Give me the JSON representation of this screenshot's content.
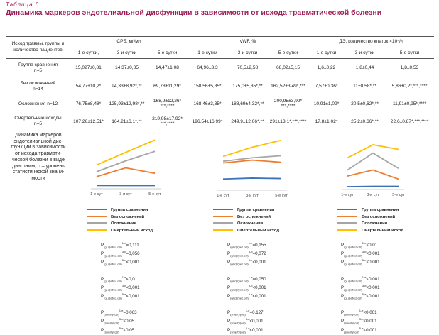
{
  "caption": "Таблица 6",
  "title": "Динамика маркеров эндотелиальной дисфункции в зависимости от исхода травматической болезни",
  "table": {
    "first_header": [
      "Исход травмы, группы и",
      "количество пациентов"
    ],
    "groups": [
      "СРБ, мг/мл",
      "vWF, %",
      "ДЭ, количество клеток ×10⁴/л"
    ],
    "days": [
      "1-е сутки,",
      "3-и сутки",
      "5-е сутки",
      "1-е сутки",
      "3-и сутки",
      "5-е сутки",
      "1-е сутки",
      "3-и сутки",
      "5-е сутки"
    ],
    "rows": [
      {
        "label": [
          "Группа сравнения",
          "n=5"
        ],
        "cells": [
          "15,027±0,81",
          "14,37±0,85",
          "14,47±1,08",
          "64,96±3,3",
          "70,5±2,58",
          "68,02±5,15",
          "1,6±0,22",
          "1,8±0,44",
          "1,8±0,53"
        ]
      },
      {
        "label": [
          "Без осложнений",
          "n=14"
        ],
        "cells": [
          "54,77±10,2*",
          "94,33±8,92*,**",
          "69,78±11,29*",
          "158,56±5,85*",
          "175,0±5,85*,**",
          "162,52±3,49*,***",
          "7,57±0,36*",
          "11±0,58*,**",
          "5,86±0,2*,***,****"
        ]
      },
      {
        "label": [
          "Осложнения n=12",
          ""
        ],
        "cells": [
          "76,75±8,48*",
          "125,93±12,98*,**",
          "168,9±12,26*",
          "168,46±3,35*",
          "188,69±4,32*,**",
          "200,95±3,99*",
          "10,91±1,09*",
          "20,5±0,62*,**",
          "11,91±0,95*,****"
        ],
        "extra": [
          "",
          "",
          "***,****",
          "",
          "",
          "***,****",
          "",
          "",
          ""
        ]
      },
      {
        "label": [
          "Смертельные исходы",
          "n=5"
        ],
        "cells": [
          "107,26±12,51*",
          "164,21±6,1*,**",
          "219,98±17,92*",
          "196,54±16,99*",
          "249,9±12,06*,**",
          "291±13,1*,***,****",
          "17,8±1,02*",
          "25,2±0,66*,**",
          "22,6±0,87*,***,****"
        ],
        "extra": [
          "",
          "",
          "***,****",
          "",
          "",
          "",
          "",
          "",
          ""
        ]
      }
    ]
  },
  "side_text": [
    "Динамика маркеров",
    "эндотелиальной дис-",
    "функции в зависимости",
    "от исхода травмати-",
    "ческой болезни в виде",
    "диаграмм, p – уровень",
    "статистической значи-",
    "мости"
  ],
  "chart_data": [
    {
      "type": "line",
      "categories": [
        "1-е сут",
        "3-и сут",
        "5-е сут"
      ],
      "ylim": [
        0,
        240
      ],
      "series": [
        {
          "name": "Группа сравнения",
          "color": "#3b74b8",
          "values": [
            15.027,
            14.37,
            14.47
          ]
        },
        {
          "name": "Без осложнений",
          "color": "#ed7d31",
          "values": [
            54.77,
            94.33,
            69.78
          ]
        },
        {
          "name": "Осложнения",
          "color": "#a5a5a5",
          "values": [
            76.75,
            125.93,
            168.9
          ]
        },
        {
          "name": "Смертельный исход",
          "color": "#ffc000",
          "values": [
            107.26,
            164.21,
            219.98
          ]
        }
      ]
    },
    {
      "type": "line",
      "categories": [
        "1-е сут",
        "3-и сут",
        "5-е сут"
      ],
      "ylim": [
        0,
        310
      ],
      "series": [
        {
          "name": "Группа сравнения",
          "color": "#3b74b8",
          "values": [
            64.96,
            70.5,
            68.02
          ]
        },
        {
          "name": "Без осложнений",
          "color": "#ed7d31",
          "values": [
            158.56,
            175.0,
            162.52
          ]
        },
        {
          "name": "Осложнения",
          "color": "#a5a5a5",
          "values": [
            168.46,
            188.69,
            200.95
          ]
        },
        {
          "name": "Смертельный исход",
          "color": "#ffc000",
          "values": [
            196.54,
            249.9,
            291.0
          ]
        }
      ]
    },
    {
      "type": "line",
      "categories": [
        "1-е сут",
        "3-и сут",
        "5-е сут"
      ],
      "ylim": [
        0,
        30
      ],
      "series": [
        {
          "name": "Группа сравнения",
          "color": "#3b74b8",
          "values": [
            1.6,
            1.8,
            1.8
          ]
        },
        {
          "name": "Без осложнений",
          "color": "#ed7d31",
          "values": [
            7.57,
            11.0,
            5.86
          ]
        },
        {
          "name": "Осложнения",
          "color": "#a5a5a5",
          "values": [
            10.91,
            20.5,
            11.91
          ]
        },
        {
          "name": "Смертельный исход",
          "color": "#ffc000",
          "values": [
            17.8,
            25.2,
            22.6
          ]
        }
      ]
    }
  ],
  "pvalues": [
    [
      [
        [
          "(gr.c)/(bez.osl)",
          "1-е",
          "=0,111"
        ],
        [
          "(gr.c)/(bez.osl)",
          "3-и",
          "=0,056"
        ],
        [
          "(gr.c)/(bez.osl)",
          "5-е",
          "<0,001"
        ]
      ],
      [
        [
          "(gr.c)/(bez.osl)",
          "1-е",
          "<0,01"
        ],
        [
          "(gr.c)/(bez.osl)",
          "3-и",
          "<0,001"
        ],
        [
          "(gr.c)/(bez.osl)",
          "5-е",
          "<0,001"
        ]
      ],
      [
        [
          "(smert)/(osl)",
          "1-е",
          "=0,063"
        ],
        [
          "(smert)/(osl)",
          "3-и",
          "<0,05"
        ],
        [
          "(smert)/(osl)",
          "5-е",
          "<0,05"
        ]
      ]
    ],
    [
      [
        [
          "(gr.c)/(bez.osl)",
          "1-е",
          "=0,155"
        ],
        [
          "(gr.c)/(bez.osl)",
          "3-и",
          "=0,072"
        ],
        [
          "(gr.c)/(bez.osl)",
          "5-е",
          "<0,001"
        ]
      ],
      [
        [
          "(gr.c)/(bez.osl)",
          "1-е",
          "=0,050"
        ],
        [
          "(gr.c)/(bez.osl)",
          "3-и",
          "<0,001"
        ],
        [
          "(gr.c)/(bez.osl)",
          "5-е",
          "<0,001"
        ]
      ],
      [
        [
          "(smert)/(osl)",
          "1-е",
          "=0,127"
        ],
        [
          "(smert)/(osl)",
          "3-и",
          "<0,001"
        ],
        [
          "(smert)/(osl)",
          "5-е",
          "<0,001"
        ]
      ]
    ],
    [
      [
        [
          "(gr.c)/(bez.osl)",
          "1-е",
          "<0,01"
        ],
        [
          "(gr.c)/(bez.osl)",
          "3-и",
          "<0,001"
        ],
        [
          "(gr.c)/(bez.osl)",
          "5-е",
          "<0,001"
        ]
      ],
      [
        [
          "(gr.c)/(bez.osl)",
          "1-е",
          "<0,001"
        ],
        [
          "(gr.c)/(bez.osl)",
          "3-и",
          "<0,001"
        ],
        [
          "(gr.c)/(bez.osl)",
          "5-е",
          "<0,001"
        ]
      ],
      [
        [
          "(smert)/(osl)",
          "1-е",
          "<0,001"
        ],
        [
          "(smert)/(osl)",
          "3-и",
          "<0,001"
        ],
        [
          "(smert)/(osl)",
          "5-е",
          "<0,001"
        ]
      ]
    ]
  ]
}
